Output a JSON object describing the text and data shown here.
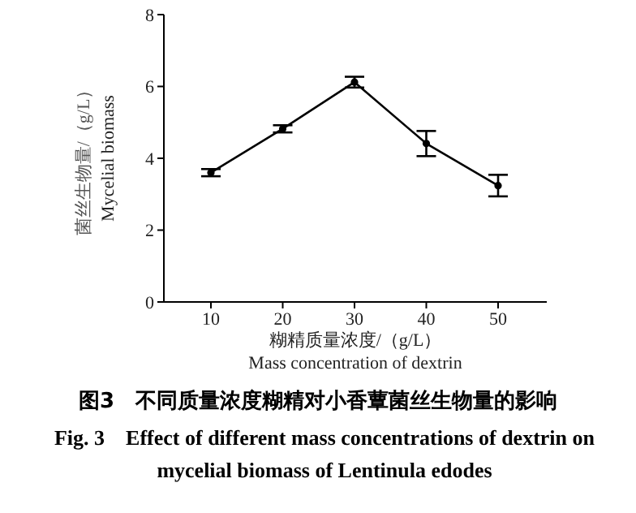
{
  "chart_data": {
    "type": "line",
    "title": "图3　不同质量浓度糊精对小香蕈菌丝生物量的影响",
    "subtitle": "Fig. 3　Effect of different mass concentrations of dextrin on mycelial biomass of Lentinula edodes",
    "xlabel": "糊精质量浓度/（g/L）\nMass concentration of dextrin",
    "ylabel": "菌丝生物量/（g/L）\nMycelial biomass",
    "categories": [
      "10",
      "20",
      "30",
      "40",
      "50"
    ],
    "series": [
      {
        "color": "#000000",
        "values": [
          3.6,
          4.82,
          6.12,
          4.41,
          3.24
        ],
        "errors": [
          0.1,
          0.1,
          0.15,
          0.35,
          0.3
        ]
      }
    ],
    "ylim": [
      0,
      8
    ],
    "yticks": [
      0,
      2,
      4,
      6,
      8
    ],
    "marker": "circle",
    "line_style": "solid"
  }
}
